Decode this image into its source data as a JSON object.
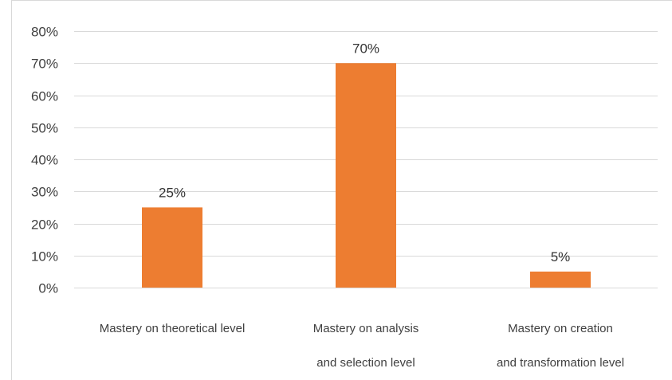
{
  "chart_data": {
    "type": "bar",
    "categories": [
      [
        "Mastery on theoretical level"
      ],
      [
        "Mastery on analysis",
        "and selection level"
      ],
      [
        "Mastery on creation",
        "and transformation level"
      ]
    ],
    "values": [
      25,
      70,
      5
    ],
    "data_labels": [
      "25%",
      "70%",
      "5%"
    ],
    "y_ticks": [
      0,
      10,
      20,
      30,
      40,
      50,
      60,
      70,
      80
    ],
    "y_tick_labels": [
      "0%",
      "10%",
      "20%",
      "30%",
      "40%",
      "50%",
      "60%",
      "70%",
      "80%"
    ],
    "ylim": [
      0,
      80
    ],
    "grid": true,
    "legend": "none",
    "title": "",
    "xlabel": "",
    "ylabel": "",
    "colors": {
      "bar": "#ED7D31",
      "grid": "#D9D9D9",
      "text": "#404040"
    }
  }
}
